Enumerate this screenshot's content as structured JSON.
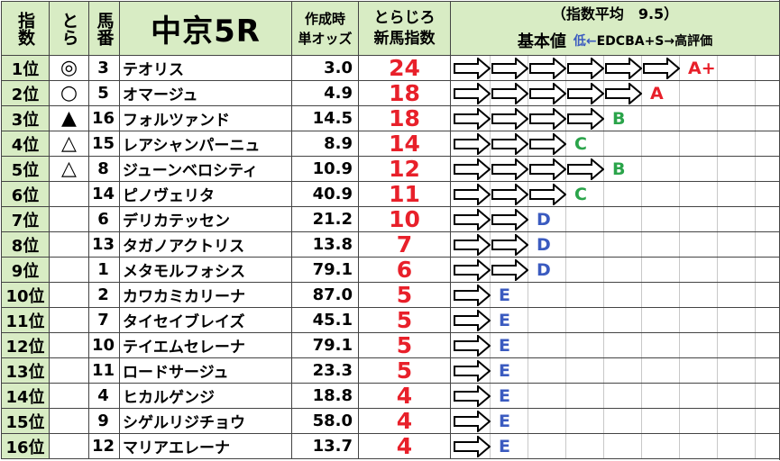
{
  "header": {
    "rank_label": "指数",
    "tora_label": "とら",
    "umaban_label": "馬番",
    "race_title": "中京5R",
    "odds_label_1": "作成時",
    "odds_label_2": "単オッズ",
    "index_label_1": "とらじろ",
    "index_label_2": "新馬指数",
    "average_label": "（指数平均　9.5）",
    "basic_label": "基本値",
    "legend_low": "低←",
    "legend_rest": "EDCBA+S→高評価"
  },
  "grade_colors": {
    "A+": "#e8202a",
    "A": "#e8202a",
    "B": "#2aa44a",
    "C": "#2aa44a",
    "D": "#3b5bc0",
    "E": "#3b5bc0"
  },
  "rows": [
    {
      "rank": "1位",
      "mark": "◎",
      "num": "3",
      "name": "テオリス",
      "odds": "3.0",
      "index": "24",
      "arrows": 6,
      "grade": "A+"
    },
    {
      "rank": "2位",
      "mark": "○",
      "num": "5",
      "name": "オマージュ",
      "odds": "4.9",
      "index": "18",
      "arrows": 5,
      "grade": "A"
    },
    {
      "rank": "3位",
      "mark": "▲",
      "num": "16",
      "name": "フォルツァンド",
      "odds": "14.5",
      "index": "18",
      "arrows": 4,
      "grade": "B"
    },
    {
      "rank": "4位",
      "mark": "△",
      "num": "15",
      "name": "レアシャンパーニュ",
      "odds": "8.9",
      "index": "14",
      "arrows": 3,
      "grade": "C"
    },
    {
      "rank": "5位",
      "mark": "△",
      "num": "8",
      "name": "ジューンベロシティ",
      "odds": "10.9",
      "index": "12",
      "arrows": 4,
      "grade": "B"
    },
    {
      "rank": "6位",
      "mark": "",
      "num": "14",
      "name": "ピノヴェリタ",
      "odds": "40.9",
      "index": "11",
      "arrows": 3,
      "grade": "C"
    },
    {
      "rank": "7位",
      "mark": "",
      "num": "6",
      "name": "デリカテッセン",
      "odds": "21.2",
      "index": "10",
      "arrows": 2,
      "grade": "D"
    },
    {
      "rank": "8位",
      "mark": "",
      "num": "13",
      "name": "タガノアクトリス",
      "odds": "13.8",
      "index": "7",
      "arrows": 2,
      "grade": "D"
    },
    {
      "rank": "9位",
      "mark": "",
      "num": "1",
      "name": "メタモルフォシス",
      "odds": "79.1",
      "index": "6",
      "arrows": 2,
      "grade": "D"
    },
    {
      "rank": "10位",
      "mark": "",
      "num": "2",
      "name": "カワカミカリーナ",
      "odds": "87.0",
      "index": "5",
      "arrows": 1,
      "grade": "E"
    },
    {
      "rank": "11位",
      "mark": "",
      "num": "7",
      "name": "タイセイブレイズ",
      "odds": "45.1",
      "index": "5",
      "arrows": 1,
      "grade": "E"
    },
    {
      "rank": "12位",
      "mark": "",
      "num": "10",
      "name": "テイエムセレーナ",
      "odds": "79.1",
      "index": "5",
      "arrows": 1,
      "grade": "E"
    },
    {
      "rank": "13位",
      "mark": "",
      "num": "11",
      "name": "ロードサージュ",
      "odds": "23.3",
      "index": "5",
      "arrows": 1,
      "grade": "E"
    },
    {
      "rank": "14位",
      "mark": "",
      "num": "4",
      "name": "ヒカルゲンジ",
      "odds": "18.8",
      "index": "4",
      "arrows": 1,
      "grade": "E"
    },
    {
      "rank": "15位",
      "mark": "",
      "num": "9",
      "name": "シゲルリジチョウ",
      "odds": "58.0",
      "index": "4",
      "arrows": 1,
      "grade": "E"
    },
    {
      "rank": "16位",
      "mark": "",
      "num": "12",
      "name": "マリアエレーナ",
      "odds": "13.7",
      "index": "4",
      "arrows": 1,
      "grade": "E"
    }
  ]
}
